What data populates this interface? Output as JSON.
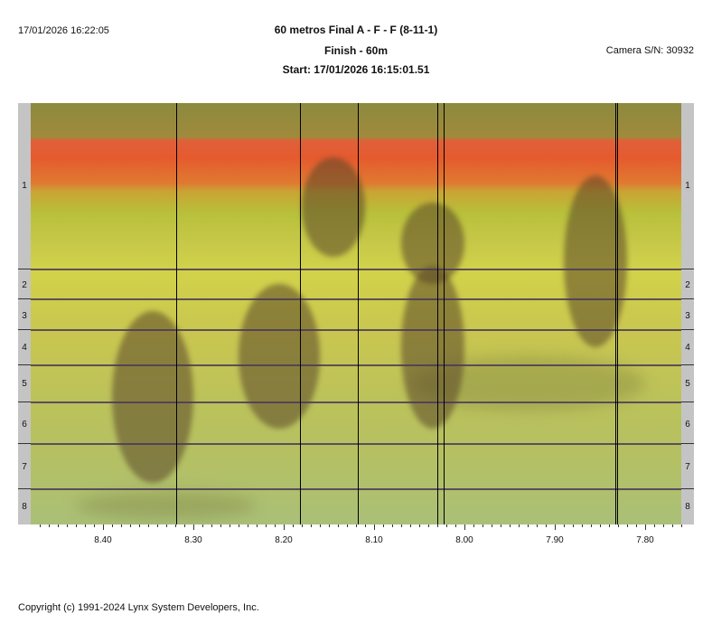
{
  "header": {
    "printed_at": "17/01/2026 16:22:05",
    "event_title": "60 metros Final A - F - F (8-11-1)",
    "subtitle": "Finish - 60m",
    "start": "Start: 17/01/2026 16:15:01.51",
    "camera": "Camera S/N: 30932"
  },
  "lanes": [
    "1",
    "2",
    "3",
    "4",
    "5",
    "6",
    "7",
    "8"
  ],
  "time_axis": {
    "ticks": [
      "8.40",
      "8.30",
      "8.20",
      "8.10",
      "8.00",
      "7.90",
      "7.80"
    ],
    "range": [
      8.48,
      7.76
    ],
    "direction": "decreasing-left-to-right"
  },
  "finish_lines": [
    8.319,
    8.182,
    8.118,
    8.03,
    8.023,
    7.833,
    7.831
  ],
  "footer": {
    "copyright": "Copyright (c) 1991-2024 Lynx System Developers, Inc."
  }
}
